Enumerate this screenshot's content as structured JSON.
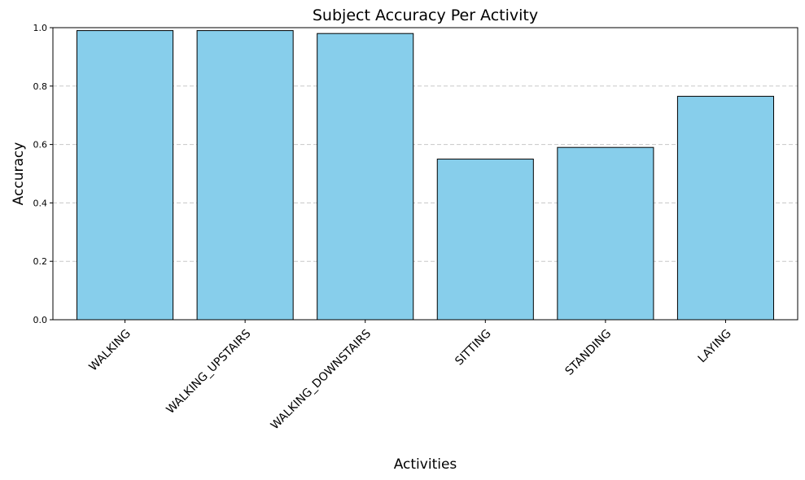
{
  "chart_data": {
    "type": "bar",
    "title": "Subject Accuracy Per Activity",
    "xlabel": "Activities",
    "ylabel": "Accuracy",
    "categories": [
      "WALKING",
      "WALKING_UPSTAIRS",
      "WALKING_DOWNSTAIRS",
      "SITTING",
      "STANDING",
      "LAYING"
    ],
    "values": [
      0.99,
      0.99,
      0.98,
      0.55,
      0.59,
      0.765
    ],
    "ylim": [
      0,
      1.0
    ],
    "yticks": [
      0.0,
      0.2,
      0.4,
      0.6,
      0.8,
      1.0
    ],
    "ytick_labels": [
      "0.0",
      "0.2",
      "0.4",
      "0.6",
      "0.8",
      "1.0"
    ],
    "grid": "y-axis dashed",
    "bar_color": "#87CEEB",
    "bar_edge_color": "#000000",
    "grid_color": "#c8c8c8"
  }
}
